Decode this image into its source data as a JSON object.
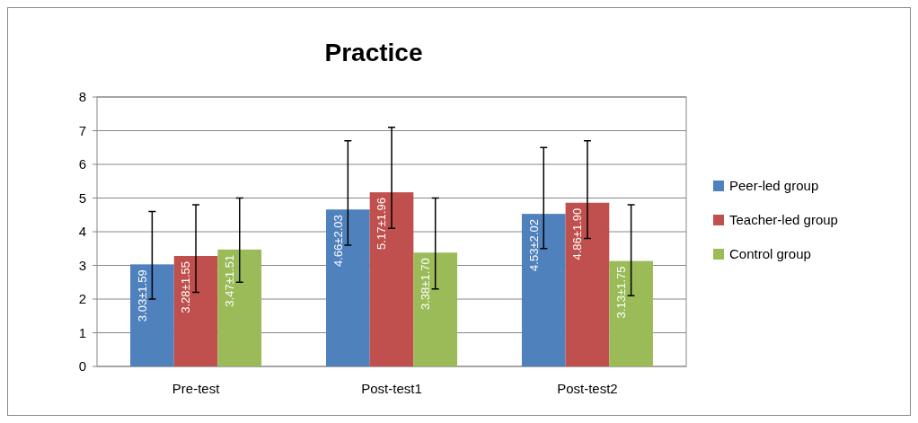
{
  "chart_data": {
    "type": "bar",
    "title": "Practice",
    "categories": [
      "Pre-test",
      "Post-test1",
      "Post-test2"
    ],
    "series": [
      {
        "name": "Peer-led group",
        "color": "#4f81bd",
        "values": [
          3.03,
          4.66,
          4.53
        ],
        "errors": [
          [
            2.0,
            4.6
          ],
          [
            3.6,
            6.7
          ],
          [
            3.5,
            6.5
          ]
        ],
        "value_labels": [
          "3.03±1.59",
          "4.66±2.03",
          "4.53±2.02"
        ]
      },
      {
        "name": "Teacher-led group",
        "color": "#c0504d",
        "values": [
          3.28,
          5.17,
          4.86
        ],
        "errors": [
          [
            2.2,
            4.8
          ],
          [
            4.1,
            7.1
          ],
          [
            3.8,
            6.7
          ]
        ],
        "value_labels": [
          "3.28±1.55",
          "5.17±1.96",
          "4.86±1.90"
        ]
      },
      {
        "name": "Control group",
        "color": "#9bbb59",
        "values": [
          3.47,
          3.38,
          3.13
        ],
        "errors": [
          [
            2.5,
            5.0
          ],
          [
            2.3,
            5.0
          ],
          [
            2.1,
            4.8
          ]
        ],
        "value_labels": [
          "3.47±1.51",
          "3.38±1.70",
          "3.13±1.75"
        ]
      }
    ],
    "ylim": [
      0,
      8
    ],
    "yticks": [
      0,
      1,
      2,
      3,
      4,
      5,
      6,
      7,
      8
    ],
    "grid": "y",
    "legend": "right"
  }
}
